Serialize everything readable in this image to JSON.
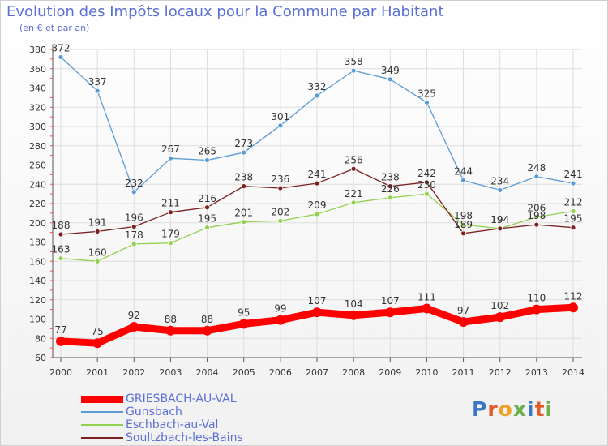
{
  "header": {
    "title": "Evolution des Impôts locaux pour la Commune par Habitant",
    "subtitle": "(en € et par an)"
  },
  "logo": {
    "text": "Proxiti"
  },
  "chart_data": {
    "type": "line",
    "title": "Evolution des Impôts locaux pour la Commune par Habitant",
    "subtitle": "(en € et par an)",
    "x": [
      "2000",
      "2001",
      "2002",
      "2003",
      "2004",
      "2005",
      "2006",
      "2007",
      "2008",
      "2009",
      "2010",
      "2011",
      "2012",
      "2013",
      "2014"
    ],
    "ylim": [
      60,
      380
    ],
    "yticks": [
      60,
      80,
      100,
      120,
      140,
      160,
      180,
      200,
      220,
      240,
      260,
      280,
      300,
      320,
      340,
      360,
      380
    ],
    "grid": true,
    "legend_position": "bottom-left",
    "series": [
      {
        "name": "GRIESBACH-AU-VAL",
        "color": "#ff0000",
        "values": [
          77,
          75,
          92,
          88,
          88,
          95,
          99,
          107,
          104,
          107,
          111,
          97,
          102,
          110,
          112
        ]
      },
      {
        "name": "Gunsbach",
        "color": "#5b9bd5",
        "values": [
          372,
          337,
          232,
          267,
          265,
          273,
          301,
          332,
          358,
          349,
          325,
          244,
          234,
          248,
          241
        ]
      },
      {
        "name": "Eschbach-au-Val",
        "color": "#92d050",
        "values": [
          163,
          160,
          178,
          179,
          195,
          201,
          202,
          209,
          221,
          226,
          230,
          198,
          194,
          206,
          212
        ]
      },
      {
        "name": "Soultzbach-les-Bains",
        "color": "#7b2020",
        "values": [
          188,
          191,
          196,
          211,
          216,
          238,
          236,
          241,
          256,
          238,
          242,
          189,
          194,
          198,
          195
        ]
      }
    ]
  }
}
